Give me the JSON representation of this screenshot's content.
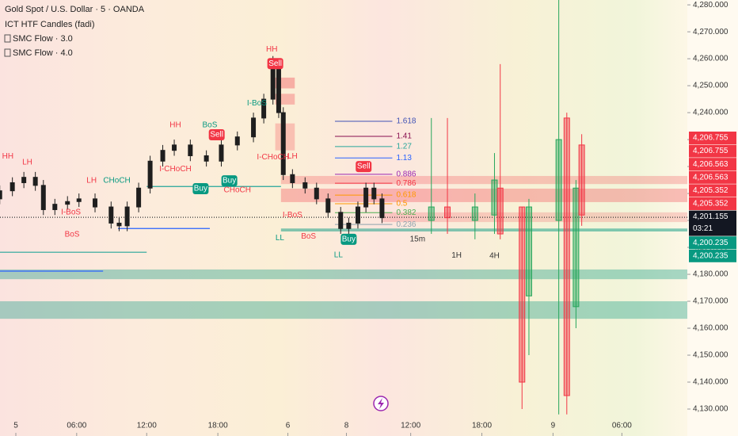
{
  "chart_data": {
    "type": "candlestick",
    "title": "Gold Spot / U.S. Dollar · 5 · OANDA",
    "indicators": [
      "ICT HTF Candles (fadi)",
      "SMC Flow · 3.0",
      "SMC Flow · 4.0"
    ],
    "xlim": [
      -1.38,
      58.5
    ],
    "ylim": [
      4120,
      4281.8
    ],
    "yticks": [
      {
        "value": 4130,
        "label": "4,130.000"
      },
      {
        "value": 4140,
        "label": "4,140.000"
      },
      {
        "value": 4150,
        "label": "4,150.000"
      },
      {
        "value": 4160,
        "label": "4,160.000"
      },
      {
        "value": 4170,
        "label": "4,170.000"
      },
      {
        "value": 4180,
        "label": "4,180.000"
      },
      {
        "value": 4190,
        "label": "4,190.000"
      },
      {
        "value": 4200,
        "label": "4,200.000"
      },
      {
        "value": 4210,
        "label": "4,210.000"
      },
      {
        "value": 4220,
        "label": "4,220.000"
      },
      {
        "value": 4230,
        "label": "4,230.000"
      },
      {
        "value": 4240,
        "label": "4,240.000"
      },
      {
        "value": 4250,
        "label": "4,250.000"
      },
      {
        "value": 4260,
        "label": "4,260.000"
      },
      {
        "value": 4270,
        "label": "4,270.000"
      },
      {
        "value": 4280,
        "label": "4,280.000"
      }
    ],
    "xticks": [
      {
        "value": 0,
        "label": "5"
      },
      {
        "value": 5.3,
        "label": "06:00"
      },
      {
        "value": 11.4,
        "label": "12:00"
      },
      {
        "value": 17.6,
        "label": "18:00"
      },
      {
        "value": 23.7,
        "label": "6"
      },
      {
        "value": 28.8,
        "label": "8"
      },
      {
        "value": 34.4,
        "label": "12:00"
      },
      {
        "value": 40.6,
        "label": "18:00"
      },
      {
        "value": 46.8,
        "label": "9"
      },
      {
        "value": 52.8,
        "label": "06:00"
      }
    ],
    "candles": {
      "color": "#1e1e1e",
      "x": [
        -1.4,
        -0.3,
        0.7,
        1.7,
        2.4,
        3.4,
        4.5,
        5.5,
        6.9,
        8.3,
        9.0,
        9.7,
        10.7,
        11.7,
        12.8,
        13.8,
        15.2,
        16.6,
        17.9,
        19.3,
        20.7,
        21.6,
        22.4,
        22.9,
        23.3,
        24.1,
        25.2,
        26.2,
        27.2,
        28.3,
        29.0,
        29.8,
        30.5,
        31.2,
        31.9
      ],
      "open": [
        4208,
        4211,
        4214,
        4216,
        4213,
        4204,
        4206,
        4207,
        4208,
        4205,
        4199,
        4198,
        4205,
        4212,
        4222,
        4226,
        4228,
        4224,
        4222,
        4228,
        4231,
        4238,
        4245,
        4257,
        4240,
        4217,
        4214,
        4212,
        4208,
        4203,
        4197,
        4199,
        4205,
        4212,
        4208
      ],
      "high": [
        4213,
        4216,
        4218,
        4218,
        4215,
        4208,
        4209,
        4210,
        4210,
        4207,
        4201,
        4207,
        4214,
        4224,
        4228,
        4230,
        4230,
        4226,
        4230,
        4233,
        4240,
        4247,
        4261,
        4259,
        4242,
        4219,
        4216,
        4214,
        4210,
        4205,
        4201,
        4207,
        4214,
        4214,
        4210
      ],
      "low": [
        4206,
        4209,
        4212,
        4211,
        4202,
        4202,
        4204,
        4205,
        4203,
        4197,
        4196,
        4196,
        4203,
        4210,
        4220,
        4224,
        4222,
        4220,
        4220,
        4226,
        4229,
        4236,
        4243,
        4238,
        4215,
        4212,
        4210,
        4206,
        4201,
        4195,
        4195,
        4197,
        4203,
        4206,
        4199
      ],
      "close": [
        4211,
        4214,
        4216,
        4213,
        4204,
        4206,
        4207,
        4208,
        4205,
        4199,
        4198,
        4205,
        4212,
        4222,
        4226,
        4228,
        4224,
        4222,
        4228,
        4231,
        4238,
        4245,
        4257,
        4240,
        4217,
        4214,
        4212,
        4208,
        4203,
        4197,
        4199,
        4205,
        4212,
        4208,
        4201
      ]
    },
    "htf_candles": {
      "up_color": "#26a65b",
      "down_color": "#f23645",
      "x": [
        36.2,
        37.6,
        40,
        41.7,
        42.2,
        44.1,
        44.7,
        47.3,
        48.0,
        48.8,
        49.3
      ],
      "open": [
        4200,
        4205,
        4200,
        4202,
        4212,
        4205,
        4172,
        4200,
        4238,
        4168,
        4228
      ],
      "high": [
        4238,
        4238,
        4210,
        4225,
        4258,
        4205,
        4208,
        4282,
        4240,
        4215,
        4232
      ],
      "low": [
        4195,
        4195,
        4193,
        4195,
        4193,
        4130,
        4150,
        4128,
        4128,
        4160,
        4198
      ],
      "close": [
        4205,
        4201,
        4205,
        4215,
        4195,
        4140,
        4205,
        4230,
        4135,
        4212,
        4202
      ]
    },
    "zones": [
      {
        "lo": 4213.5,
        "hi": 4216.5,
        "x0": 23.1,
        "x1": 58.5,
        "color": "rgba(242,54,69,0.25)"
      },
      {
        "lo": 4206.8,
        "hi": 4211.8,
        "x0": 23.1,
        "x1": 58.5,
        "color": "rgba(242,54,69,0.3)"
      },
      {
        "lo": 4199.4,
        "hi": 4203,
        "x0": 31.9,
        "x1": 58.5,
        "color": "rgba(242,54,69,0.2)"
      },
      {
        "lo": 4195.9,
        "hi": 4197,
        "x0": 23.1,
        "x1": 58.5,
        "color": "rgba(8,153,129,0.5)"
      },
      {
        "lo": 4178.2,
        "hi": 4181.8,
        "x0": -1.38,
        "x1": 58.5,
        "color": "rgba(8,153,129,0.35)"
      },
      {
        "lo": 4163.5,
        "hi": 4170,
        "x0": -1.38,
        "x1": 58.5,
        "color": "rgba(8,153,129,0.35)"
      },
      {
        "lo": 4249,
        "hi": 4253,
        "x0": 22.6,
        "x1": 24.3,
        "color": "rgba(242,54,69,0.35)"
      },
      {
        "lo": 4243,
        "hi": 4247,
        "x0": 22.6,
        "x1": 24.3,
        "color": "rgba(242,54,69,0.3)"
      },
      {
        "lo": 4226,
        "hi": 4236,
        "x0": 22.6,
        "x1": 24.3,
        "color": "rgba(242,54,69,0.25)"
      }
    ],
    "lines": [
      {
        "value": 4212.6,
        "x0": 11.4,
        "x1": 23.1,
        "color": "#26a69a"
      },
      {
        "value": 4188.2,
        "x0": -1.38,
        "x1": 11.4,
        "color": "#26a69a"
      },
      {
        "value": 4197,
        "x0": 8.9,
        "x1": 16.9,
        "color": "#2962ff"
      },
      {
        "value": 4181.2,
        "x0": -1.38,
        "x1": 7.6,
        "color": "#2962ff"
      },
      {
        "value": 4201.155,
        "x0": -1.38,
        "x1": 58.5,
        "color": "#333"
      }
    ],
    "fib_levels": [
      {
        "ratio": 1.618,
        "price": 4236.8,
        "color": "#3f51b5"
      },
      {
        "ratio": 1.41,
        "price": 4231.2,
        "color": "#880e4f"
      },
      {
        "ratio": 1.27,
        "price": 4227.4,
        "color": "#26a69a"
      },
      {
        "ratio": 1.13,
        "price": 4223.2,
        "color": "#2962ff"
      },
      {
        "ratio": 0.886,
        "price": 4217.1,
        "color": "#9c27b0"
      },
      {
        "ratio": 0.786,
        "price": 4213.8,
        "color": "#f23645"
      },
      {
        "ratio": 0.618,
        "price": 4209.4,
        "color": "#ff9800"
      },
      {
        "ratio": 0.5,
        "price": 4206.2,
        "color": "#ff9800"
      },
      {
        "ratio": 0.382,
        "price": 4202.9,
        "color": "#4caf50"
      },
      {
        "ratio": 0.236,
        "price": 4198.5,
        "color": "#90a4ae"
      }
    ],
    "annotations": [
      {
        "text": "HH",
        "x": -0.7,
        "y": 4223.8,
        "color": "#f23645"
      },
      {
        "text": "LH",
        "x": 1.0,
        "y": 4221.5,
        "color": "#f23645"
      },
      {
        "text": "HH",
        "x": 22.3,
        "y": 4263.5,
        "color": "#f23645"
      },
      {
        "text": "LH",
        "x": 6.6,
        "y": 4214.7,
        "color": "#f23645"
      },
      {
        "text": "HH",
        "x": 13.9,
        "y": 4235.3,
        "color": "#f23645"
      },
      {
        "text": "LH",
        "x": 24.1,
        "y": 4223.8,
        "color": "#f23645"
      },
      {
        "text": "LL",
        "x": 23,
        "y": 4193.5,
        "color": "#089981"
      },
      {
        "text": "LL",
        "x": 28.1,
        "y": 4187.1,
        "color": "#089981"
      },
      {
        "text": "CHoCH",
        "x": 8.8,
        "y": 4214.7,
        "color": "#089981"
      },
      {
        "text": "BoS",
        "x": 4.9,
        "y": 4194.7,
        "color": "#f23645"
      },
      {
        "text": "BoS",
        "x": 16.9,
        "y": 4235.3,
        "color": "#089981"
      },
      {
        "text": "BoS",
        "x": 25.5,
        "y": 4194.1,
        "color": "#f23645"
      },
      {
        "text": "I-BoS",
        "x": 4.8,
        "y": 4203,
        "color": "#f23645"
      },
      {
        "text": "I-BoS",
        "x": 21.0,
        "y": 4243.5,
        "color": "#089981"
      },
      {
        "text": "I-BoS",
        "x": 24.1,
        "y": 4202,
        "color": "#f23645"
      },
      {
        "text": "I-CHoCH",
        "x": 13.9,
        "y": 4219.1,
        "color": "#f23645"
      },
      {
        "text": "CHoCH",
        "x": 19.3,
        "y": 4211.2,
        "color": "#f23645"
      },
      {
        "text": "I-CHoCH",
        "x": 22.4,
        "y": 4223.5,
        "color": "#f23645"
      },
      {
        "text": "15m",
        "x": 35,
        "y": 4193,
        "color": "#333"
      },
      {
        "text": "1H",
        "x": 38.4,
        "y": 4187,
        "color": "#333"
      },
      {
        "text": "4H",
        "x": 41.7,
        "y": 4186.8,
        "color": "#333"
      }
    ],
    "signals": [
      {
        "text": "Sell",
        "x": 22.6,
        "y": 4258.2,
        "color": "#f23645"
      },
      {
        "text": "Sell",
        "x": 17.5,
        "y": 4231.8,
        "color": "#f23645"
      },
      {
        "text": "Sell",
        "x": 30.3,
        "y": 4220,
        "color": "#f23645"
      },
      {
        "text": "Buy",
        "x": 16.1,
        "y": 4211.8,
        "color": "#089981"
      },
      {
        "text": "Buy",
        "x": 18.6,
        "y": 4214.7,
        "color": "#089981"
      },
      {
        "text": "Buy",
        "x": 29,
        "y": 4193,
        "color": "#089981"
      }
    ],
    "price_labels": [
      {
        "value": 4206.755,
        "label": "4,206.755",
        "color": "#f23645"
      },
      {
        "value": 4206.755,
        "label": "4,206.755",
        "color": "#f23645"
      },
      {
        "value": 4206.563,
        "label": "4,206.563",
        "color": "#f23645"
      },
      {
        "value": 4206.563,
        "label": "4,206.563",
        "color": "#f23645"
      },
      {
        "value": 4205.352,
        "label": "4,205.352",
        "color": "#f23645"
      },
      {
        "value": 4205.352,
        "label": "4,205.352",
        "color": "#f23645"
      },
      {
        "value": 4201.155,
        "label": "4,201.155",
        "color": "#131722",
        "countdown": "03:21"
      },
      {
        "value": 4200.235,
        "label": "4,200.235",
        "color": "#089981"
      },
      {
        "value": 4200.235,
        "label": "4,200.235",
        "color": "#089981"
      }
    ]
  }
}
